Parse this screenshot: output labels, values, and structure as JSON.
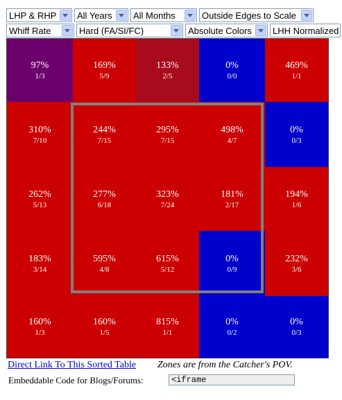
{
  "filters_row1": [
    {
      "name": "handedness-select",
      "value": "LHP & RHP"
    },
    {
      "name": "years-select",
      "value": "All Years"
    },
    {
      "name": "months-select",
      "value": "All Months"
    },
    {
      "name": "edges-select",
      "value": "Outside Edges to Scale"
    }
  ],
  "filters_row2": [
    {
      "name": "stat-select",
      "value": "Whiff Rate"
    },
    {
      "name": "pitch-type-select",
      "value": "Hard (FA/SI/FC)"
    },
    {
      "name": "color-mode-select",
      "value": "Absolute Colors"
    },
    {
      "name": "normalization-label",
      "value": "LHH Normalized"
    }
  ],
  "colors": {
    "purple": "#6b006b",
    "red": "#cc0000",
    "darkred": "#a80a1e",
    "blue": "#0000cc"
  },
  "zones": [
    [
      {
        "pct": "97%",
        "count": "1/3",
        "color": "purple"
      },
      {
        "pct": "169%",
        "count": "5/9",
        "color": "red"
      },
      {
        "pct": "133%",
        "count": "2/5",
        "color": "darkred"
      },
      {
        "pct": "0%",
        "count": "0/0",
        "color": "blue"
      },
      {
        "pct": "469%",
        "count": "1/1",
        "color": "red"
      }
    ],
    [
      {
        "pct": "310%",
        "count": "7/10",
        "color": "red"
      },
      {
        "pct": "244%",
        "count": "7/15",
        "color": "red"
      },
      {
        "pct": "295%",
        "count": "7/15",
        "color": "red"
      },
      {
        "pct": "498%",
        "count": "4/7",
        "color": "red"
      },
      {
        "pct": "0%",
        "count": "0/3",
        "color": "blue"
      }
    ],
    [
      {
        "pct": "262%",
        "count": "5/13",
        "color": "red"
      },
      {
        "pct": "277%",
        "count": "6/18",
        "color": "red"
      },
      {
        "pct": "323%",
        "count": "7/24",
        "color": "red"
      },
      {
        "pct": "181%",
        "count": "2/17",
        "color": "red"
      },
      {
        "pct": "194%",
        "count": "1/6",
        "color": "red"
      }
    ],
    [
      {
        "pct": "183%",
        "count": "3/14",
        "color": "red"
      },
      {
        "pct": "595%",
        "count": "4/8",
        "color": "red"
      },
      {
        "pct": "615%",
        "count": "5/12",
        "color": "red"
      },
      {
        "pct": "0%",
        "count": "0/9",
        "color": "blue"
      },
      {
        "pct": "232%",
        "count": "3/6",
        "color": "red"
      }
    ],
    [
      {
        "pct": "160%",
        "count": "1/3",
        "color": "red"
      },
      {
        "pct": "160%",
        "count": "1/5",
        "color": "red"
      },
      {
        "pct": "815%",
        "count": "1/1",
        "color": "red"
      },
      {
        "pct": "0%",
        "count": "0/2",
        "color": "blue"
      },
      {
        "pct": "0%",
        "count": "0/3",
        "color": "blue"
      }
    ]
  ],
  "footer": {
    "link_text": "Direct Link To This Sorted Table",
    "note": "Zones are from the Catcher's POV.",
    "embed_label": "Embeddable Code for Blogs/Forums:",
    "embed_value": "<iframe"
  }
}
